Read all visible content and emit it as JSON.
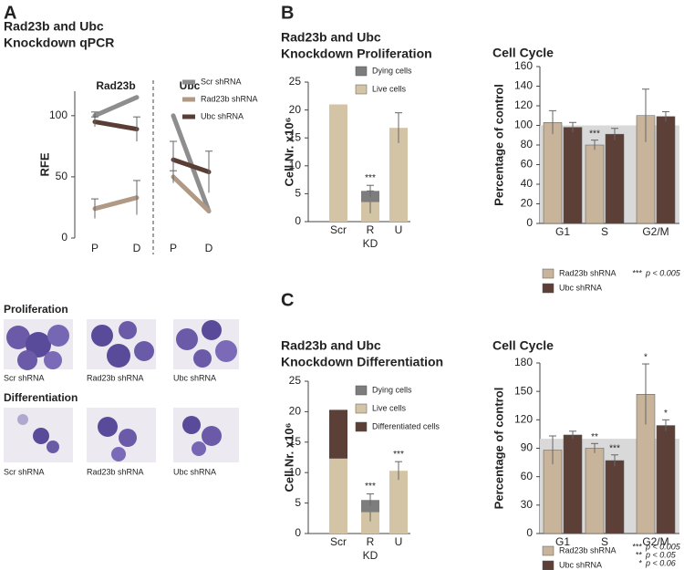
{
  "figure_labels": [
    "A",
    "B",
    "C"
  ],
  "micrographs": {
    "rows": [
      {
        "title": "Proliferation",
        "captions": [
          "Scr shRNA",
          "Rad23b shRNA",
          "Ubc shRNA"
        ]
      },
      {
        "title": "Differentiation",
        "captions": [
          "Scr shRNA",
          "Rad23b shRNA",
          "Ubc shRNA"
        ]
      }
    ]
  },
  "chart_data": [
    {
      "type": "line",
      "title": [
        "Rad23b and Ubc",
        "Knockdown qPCR"
      ],
      "ylabel": "RFE",
      "groups": [
        "Rad23b",
        "Ubc"
      ],
      "categories": [
        "P",
        "D",
        "P",
        "D"
      ],
      "series": [
        {
          "name": "Scr shRNA",
          "color": "#8e8e8e",
          "values": [
            100,
            115,
            100,
            22
          ],
          "errors": [
            3,
            null,
            null,
            null
          ]
        },
        {
          "name": "Rad23b shRNA",
          "color": "#b09a86",
          "values": [
            24,
            33,
            50,
            22
          ],
          "errors": [
            8,
            14,
            5,
            null
          ]
        },
        {
          "name": "Ubc shRNA",
          "color": "#5a3e36",
          "values": [
            95,
            89,
            64,
            54
          ],
          "errors": [
            4,
            10,
            15,
            17
          ]
        }
      ],
      "ylim": [
        0,
        120
      ],
      "yticks": [
        0,
        50,
        100
      ]
    },
    {
      "type": "bar",
      "stacked": true,
      "title": [
        "Rad23b and Ubc",
        "Knockdown Proliferation"
      ],
      "ylabel": "Cell Nr. x10⁶",
      "xlabel": "KD",
      "categories": [
        "Scr",
        "R",
        "U"
      ],
      "series": [
        {
          "name": "Dying cells",
          "color": "#7d7d7d",
          "values": [
            0,
            2,
            0
          ],
          "errors": [
            null,
            1,
            null
          ],
          "stars": [
            null,
            "***",
            null
          ]
        },
        {
          "name": "Live cells",
          "color": "#d4c4a6",
          "values": [
            21,
            3.5,
            16.8
          ],
          "errors": [
            null,
            2,
            2.7
          ],
          "stars": [
            null,
            null,
            null
          ]
        }
      ],
      "ylim": [
        0,
        25
      ],
      "yticks": [
        0,
        5,
        10,
        15,
        20,
        25
      ]
    },
    {
      "type": "bar",
      "stacked": false,
      "title": [
        "Cell Cycle"
      ],
      "ylabel": "Percentage of control",
      "categories": [
        "G1",
        "S",
        "G2/M"
      ],
      "control": 100,
      "series": [
        {
          "name": "Rad23b shRNA",
          "color": "#c8b49a",
          "values": [
            103,
            80,
            110
          ],
          "errors": [
            12,
            5,
            27
          ],
          "stars": [
            null,
            "***",
            null
          ]
        },
        {
          "name": "Ubc shRNA",
          "color": "#5c4038",
          "values": [
            98,
            91,
            109
          ],
          "errors": [
            5,
            6,
            5
          ],
          "stars": [
            null,
            null,
            null
          ]
        }
      ],
      "notes": [
        {
          "stars": "***",
          "text": "p < 0.005"
        }
      ],
      "ylim": [
        0,
        160
      ],
      "yticks": [
        0,
        20,
        40,
        60,
        80,
        100,
        120,
        140,
        160
      ]
    },
    {
      "type": "bar",
      "stacked": true,
      "title": [
        "Rad23b and Ubc",
        "Knockdown Differentiation"
      ],
      "ylabel": "Cell Nr. x10⁶",
      "xlabel": "KD",
      "categories": [
        "Scr",
        "R",
        "U"
      ],
      "series": [
        {
          "name": "Dying cells",
          "color": "#7d7d7d",
          "values": [
            0,
            2,
            0
          ],
          "errors": [
            null,
            1,
            null
          ],
          "stars": [
            null,
            "***",
            null
          ]
        },
        {
          "name": "Live cells",
          "color": "#d4c4a6",
          "values": [
            12.3,
            3.5,
            10.3
          ],
          "errors": [
            null,
            1.5,
            1.5
          ],
          "stars": [
            null,
            null,
            "***"
          ]
        },
        {
          "name": "Differentiated cells",
          "color": "#5c4038",
          "values": [
            8,
            0,
            0
          ],
          "errors": [
            null,
            null,
            null
          ],
          "stars": [
            null,
            null,
            null
          ]
        }
      ],
      "ylim": [
        0,
        25
      ],
      "yticks": [
        0,
        5,
        10,
        15,
        20,
        25
      ]
    },
    {
      "type": "bar",
      "stacked": false,
      "title": [
        "Cell Cycle"
      ],
      "ylabel": "Percentage of control",
      "categories": [
        "G1",
        "S",
        "G2/M"
      ],
      "control": 100,
      "series": [
        {
          "name": "Rad23b shRNA",
          "color": "#c8b49a",
          "values": [
            88,
            90,
            147
          ],
          "errors": [
            15,
            5,
            32
          ],
          "stars": [
            null,
            "**",
            "*"
          ]
        },
        {
          "name": "Ubc shRNA",
          "color": "#5c4038",
          "values": [
            104,
            77,
            114
          ],
          "errors": [
            4,
            6,
            6
          ],
          "stars": [
            null,
            "***",
            "*"
          ]
        }
      ],
      "notes": [
        {
          "stars": "***",
          "text": "p < 0.005"
        },
        {
          "stars": "**",
          "text": "p < 0.05"
        },
        {
          "stars": "*",
          "text": "p < 0.06"
        }
      ],
      "ylim": [
        0,
        180
      ],
      "yticks": [
        0,
        30,
        60,
        90,
        120,
        150,
        180
      ]
    }
  ]
}
